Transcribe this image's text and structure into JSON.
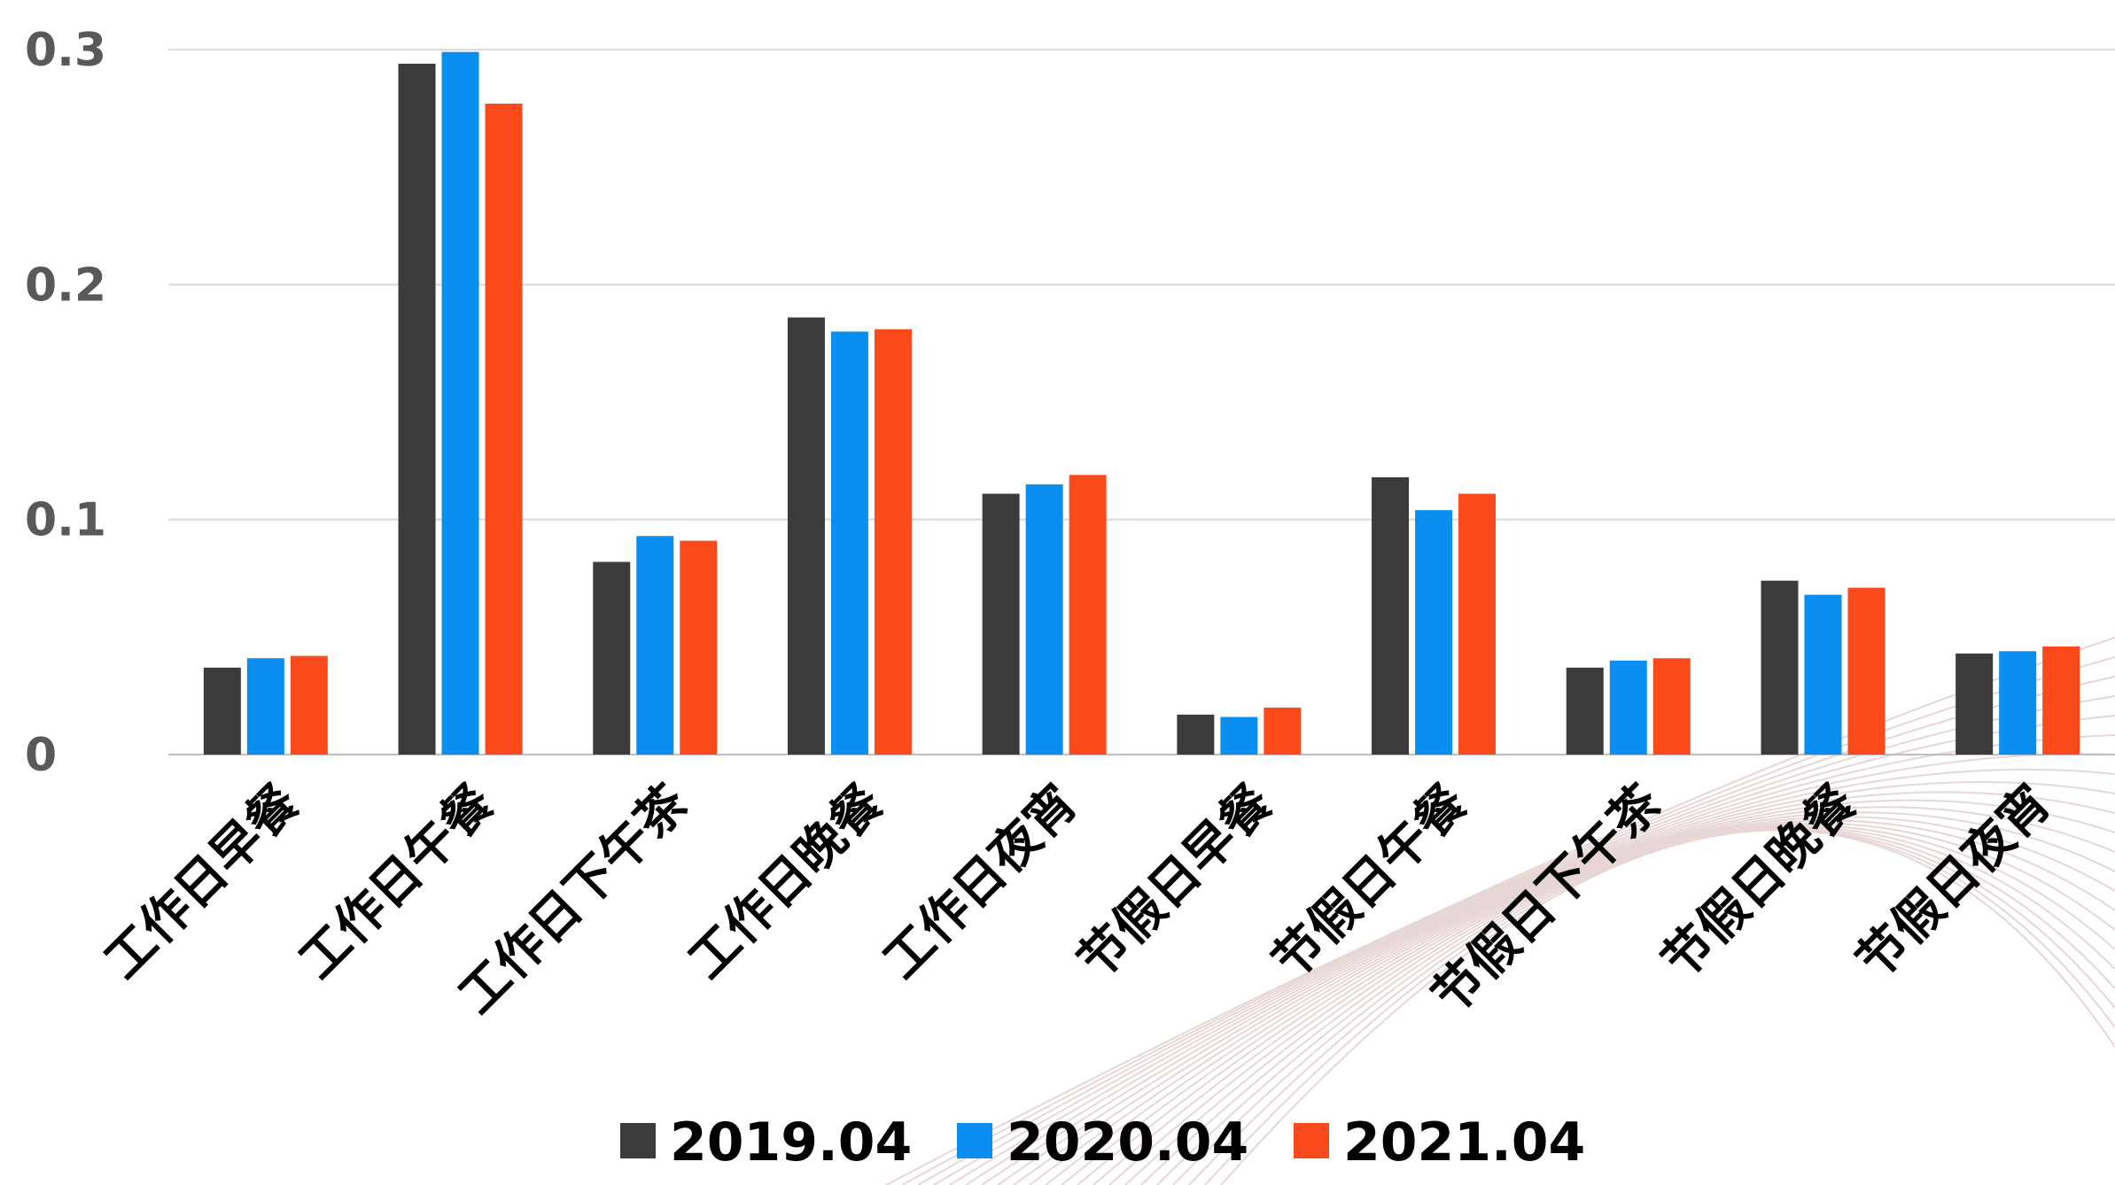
{
  "chart_data": {
    "type": "bar",
    "title": "",
    "xlabel": "",
    "ylabel": "",
    "ylim": [
      0,
      0.3
    ],
    "yticks": [
      0,
      0.1,
      0.2,
      0.3
    ],
    "ytick_labels": [
      "0",
      "0.1",
      "0.2",
      "0.3"
    ],
    "grid": true,
    "legend_position": "bottom",
    "categories": [
      "工作日早餐",
      "工作日午餐",
      "工作日下午茶",
      "工作日晚餐",
      "工作日夜宵",
      "节假日早餐",
      "节假日午餐",
      "节假日下午茶",
      "节假日晚餐",
      "节假日夜宵"
    ],
    "series": [
      {
        "name": "2019.04",
        "color": "#3d3a3b",
        "values": [
          0.037,
          0.294,
          0.082,
          0.186,
          0.111,
          0.017,
          0.118,
          0.037,
          0.074,
          0.043
        ]
      },
      {
        "name": "2020.04",
        "color": "#0a8ef0",
        "values": [
          0.041,
          0.299,
          0.093,
          0.18,
          0.115,
          0.016,
          0.104,
          0.04,
          0.068,
          0.044
        ]
      },
      {
        "name": "2021.04",
        "color": "#fd4a1d",
        "values": [
          0.042,
          0.277,
          0.091,
          0.181,
          0.119,
          0.02,
          0.111,
          0.041,
          0.071,
          0.046
        ]
      }
    ]
  }
}
